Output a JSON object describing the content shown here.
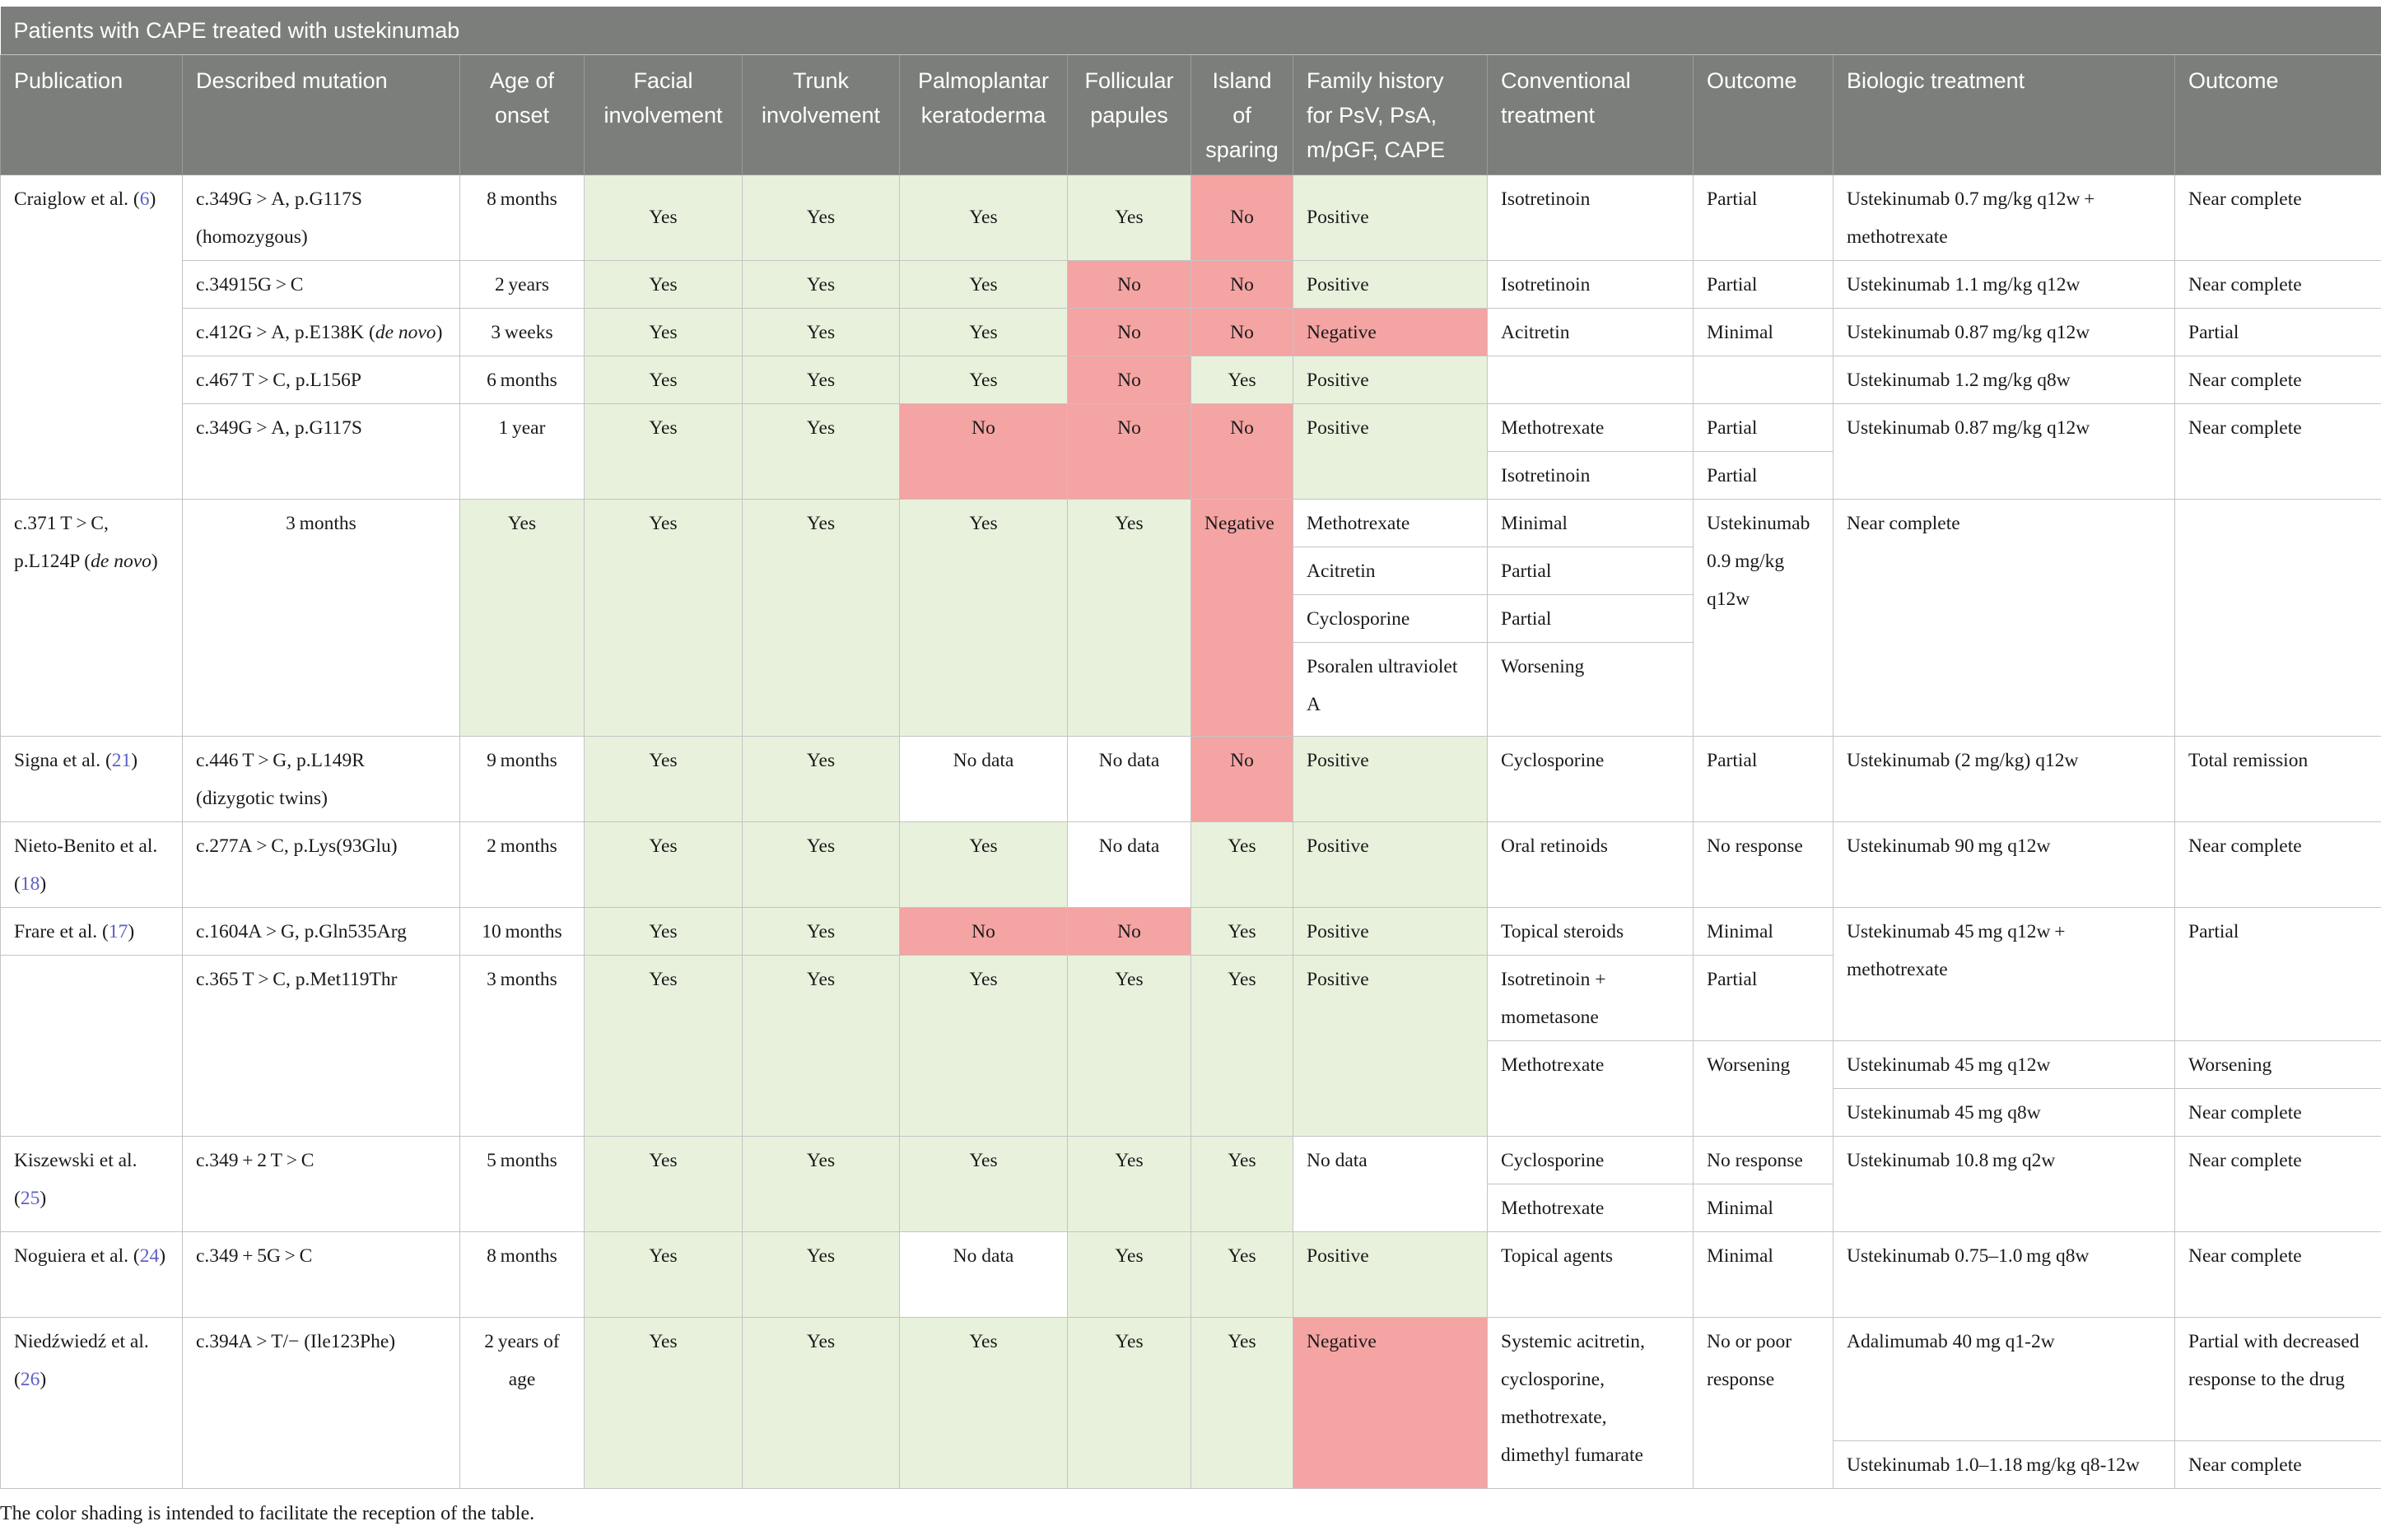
{
  "caption": "Patients with CAPE treated with ustekinumab",
  "columns": [
    "Publication",
    "Described mutation",
    "Age of onset",
    "Facial involvement",
    "Trunk involvement",
    "Palmoplantar keratoderma",
    "Follicular papules",
    "Island of sparing",
    "Family history for PsV, PsA, m/pGF, CAPE",
    "Conventional treatment",
    "Outcome",
    "Biologic treatment",
    "Outcome"
  ],
  "colors": {
    "header_bg": "#7c7e7b",
    "positive": "#e8f1dc",
    "negative": "#f4a4a3"
  },
  "rows": [
    {
      "pub": "Craiglow et al. (",
      "pub_ref": "6",
      "pub_end": ")",
      "mutation": "c.349G > A, p.G117S (homozygous)",
      "age": "8 months",
      "facial": "Yes",
      "trunk": "Yes",
      "ppk": "Yes",
      "fp": "Yes",
      "island": "No",
      "family": "Positive",
      "conv1": "Isotretinoin",
      "out1": "Partial",
      "bio1": "Ustekinumab 0.7 mg/kg q12w + methotrexate",
      "bout1": "Near complete"
    },
    {
      "mutation": "c.34915G > C",
      "age": "2 years",
      "facial": "Yes",
      "trunk": "Yes",
      "ppk": "Yes",
      "fp": "No",
      "island": "No",
      "family": "Positive",
      "conv1": "Isotretinoin",
      "out1": "Partial",
      "bio1": "Ustekinumab 1.1 mg/kg q12w",
      "bout1": "Near complete"
    },
    {
      "mutation": "c.412G > A, p.E138K (",
      "mutation_it": "de novo",
      "mutation_end": ")",
      "age": "3 weeks",
      "facial": "Yes",
      "trunk": "Yes",
      "ppk": "Yes",
      "fp": "No",
      "island": "No",
      "family": "Negative",
      "conv1": "Acitretin",
      "out1": "Minimal",
      "bio1": "Ustekinumab 0.87 mg/kg q12w",
      "bout1": "Partial"
    },
    {
      "mutation": "c.467 T > C, p.L156P",
      "age": "6 months",
      "facial": "Yes",
      "trunk": "Yes",
      "ppk": "Yes",
      "fp": "No",
      "island": "Yes",
      "family": "Positive",
      "conv1": "",
      "out1": "",
      "bio1": "Ustekinumab 1.2 mg/kg q8w",
      "bout1": "Near complete"
    },
    {
      "mutation": "c.349G > A, p.G117S",
      "age": "1 year",
      "facial": "Yes",
      "trunk": "Yes",
      "ppk": "No",
      "fp": "No",
      "island": "No",
      "family": "Positive",
      "conv1": "Methotrexate",
      "out1": "Partial",
      "conv2": "Isotretinoin",
      "out2": "Partial",
      "bio1": "Ustekinumab 0.87 mg/kg q12w",
      "bout1": "Near complete"
    },
    {
      "mutation": "c.371 T > C, p.L124P (",
      "mutation_it": "de novo",
      "mutation_end": ")",
      "age": "3 months",
      "facial": "Yes",
      "trunk": "Yes",
      "ppk": "Yes",
      "fp": "Yes",
      "island": "Yes",
      "family": "Negative",
      "conv1": "Methotrexate",
      "out1": "Minimal",
      "conv2": "Acitretin",
      "out2": "Partial",
      "conv3": "Cyclosporine",
      "out3": "Partial",
      "conv4": "Psoralen ultraviolet A",
      "out4": "Worsening",
      "bio1": "Ustekinumab 0.9 mg/kg q12w",
      "bout1": "Near complete"
    },
    {
      "pub": "Signa et al. (",
      "pub_ref": "21",
      "pub_end": ")",
      "mutation": "c.446 T > G, p.L149R (dizygotic twins)",
      "age": "9 months",
      "facial": "Yes",
      "trunk": "Yes",
      "ppk": "No data",
      "fp": "No data",
      "island": "No",
      "family": "Positive",
      "conv1": "Cyclosporine",
      "out1": "Partial",
      "bio1": "Ustekinumab (2 mg/kg) q12w",
      "bout1": "Total remission"
    },
    {
      "pub": "Nieto-Benito et al. (",
      "pub_ref": "18",
      "pub_end": ")",
      "mutation": "c.277A > C, p.Lys(93Glu)",
      "age": "2 months",
      "facial": "Yes",
      "trunk": "Yes",
      "ppk": "Yes",
      "fp": "No data",
      "island": "Yes",
      "family": "Positive",
      "conv1": "Oral retinoids",
      "out1": "No response",
      "bio1": "Ustekinumab 90 mg q12w",
      "bout1": "Near complete"
    },
    {
      "pub": "Frare et al. (",
      "pub_ref": "17",
      "pub_end": ")",
      "mutation": "c.1604A > G, p.Gln535Arg",
      "age": "10 months",
      "facial": "Yes",
      "trunk": "Yes",
      "ppk": "No",
      "fp": "No",
      "island": "Yes",
      "family": "Positive",
      "conv1": "Topical steroids",
      "out1": "Minimal",
      "bio1": "Ustekinumab 45 mg q12w + methotrexate",
      "bout1": "Partial"
    },
    {
      "mutation": "c.365 T > C, p.Met119Thr",
      "age": "3 months",
      "facial": "Yes",
      "trunk": "Yes",
      "ppk": "Yes",
      "fp": "Yes",
      "island": "Yes",
      "family": "Positive",
      "conv1": "Isotretinoin + mometasone",
      "out1": "Partial",
      "conv2": "Methotrexate",
      "out2": "Worsening",
      "bio2": "Ustekinumab 45 mg q12w",
      "bout2": "Worsening",
      "bio3": "Ustekinumab 45 mg q8w",
      "bout3": "Near complete"
    },
    {
      "pub": "Kiszewski et al. (",
      "pub_ref": "25",
      "pub_end": ")",
      "mutation": "c.349 + 2 T > C",
      "age": "5 months",
      "facial": "Yes",
      "trunk": "Yes",
      "ppk": "Yes",
      "fp": "Yes",
      "island": "Yes",
      "family": "No data",
      "conv1": "Cyclosporine",
      "out1": "No response",
      "conv2": "Methotrexate",
      "out2": "Minimal",
      "bio1": "Ustekinumab 10.8 mg q2w",
      "bout1": "Near complete"
    },
    {
      "pub": "Noguiera et al. (",
      "pub_ref": "24",
      "pub_end": ")",
      "mutation": "c.349 + 5G > C",
      "age": "8 months",
      "facial": "Yes",
      "trunk": "Yes",
      "ppk": "No data",
      "fp": "Yes",
      "island": "Yes",
      "family": "Positive",
      "conv1": "Topical agents",
      "out1": "Minimal",
      "bio1": "Ustekinumab 0.75–1.0 mg q8w",
      "bout1": "Near complete"
    },
    {
      "pub": "Niedźwiedź et al. (",
      "pub_ref": "26",
      "pub_end": ")",
      "mutation": "c.394A > T/− (Ile123Phe)",
      "age": "2 years of age",
      "facial": "Yes",
      "trunk": "Yes",
      "ppk": "Yes",
      "fp": "Yes",
      "island": "Yes",
      "family": "Negative",
      "conv1": "Systemic acitretin, cyclosporine, methotrexate, dimethyl fumarate",
      "out1": "No or poor response",
      "bio1": "Adalimumab 40 mg q1-2w",
      "bout1": "Partial with decreased response to the drug",
      "bio2": "Ustekinumab 1.0–1.18 mg/kg q8-12w",
      "bout2": "Near complete"
    }
  ],
  "footnote": "The color shading is intended to facilitate the reception of the table."
}
